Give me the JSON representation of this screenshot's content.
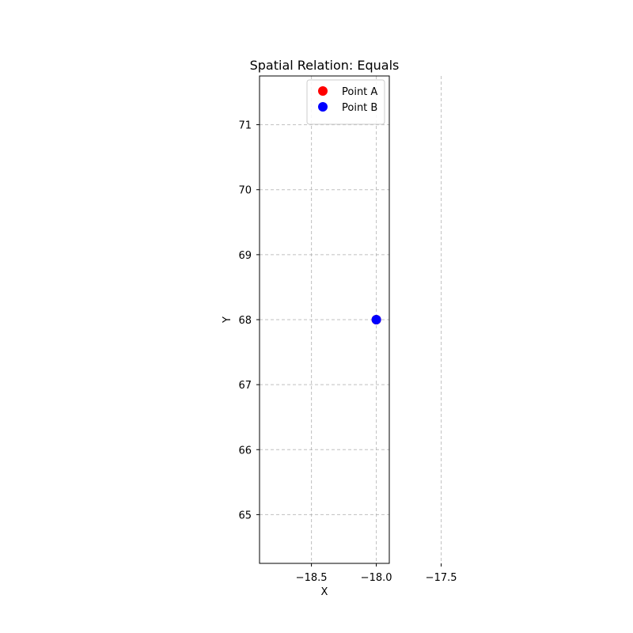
{
  "chart_data": {
    "type": "scatter",
    "title": "Spatial Relation: Equals",
    "xlabel": "X",
    "ylabel": "Y",
    "xlim": [
      -18.9,
      -17.9
    ],
    "ylim": [
      64.25,
      71.75
    ],
    "x_ticks": [
      {
        "value": -18.5,
        "label": "−18.5"
      },
      {
        "value": -18.0,
        "label": "−18.0"
      },
      {
        "value": -17.5,
        "label": "−17.5"
      }
    ],
    "y_ticks": [
      {
        "value": 65,
        "label": "65"
      },
      {
        "value": 66,
        "label": "66"
      },
      {
        "value": 67,
        "label": "67"
      },
      {
        "value": 68,
        "label": "68"
      },
      {
        "value": 69,
        "label": "69"
      },
      {
        "value": 70,
        "label": "70"
      },
      {
        "value": 71,
        "label": "71"
      }
    ],
    "grid": true,
    "legend_position": "top-right",
    "series": [
      {
        "name": "Point A",
        "color": "#ff0000",
        "points": [
          {
            "x": -18.0,
            "y": 68.0
          }
        ]
      },
      {
        "name": "Point B",
        "color": "#0000ff",
        "points": [
          {
            "x": -18.0,
            "y": 68.0
          }
        ]
      }
    ]
  }
}
